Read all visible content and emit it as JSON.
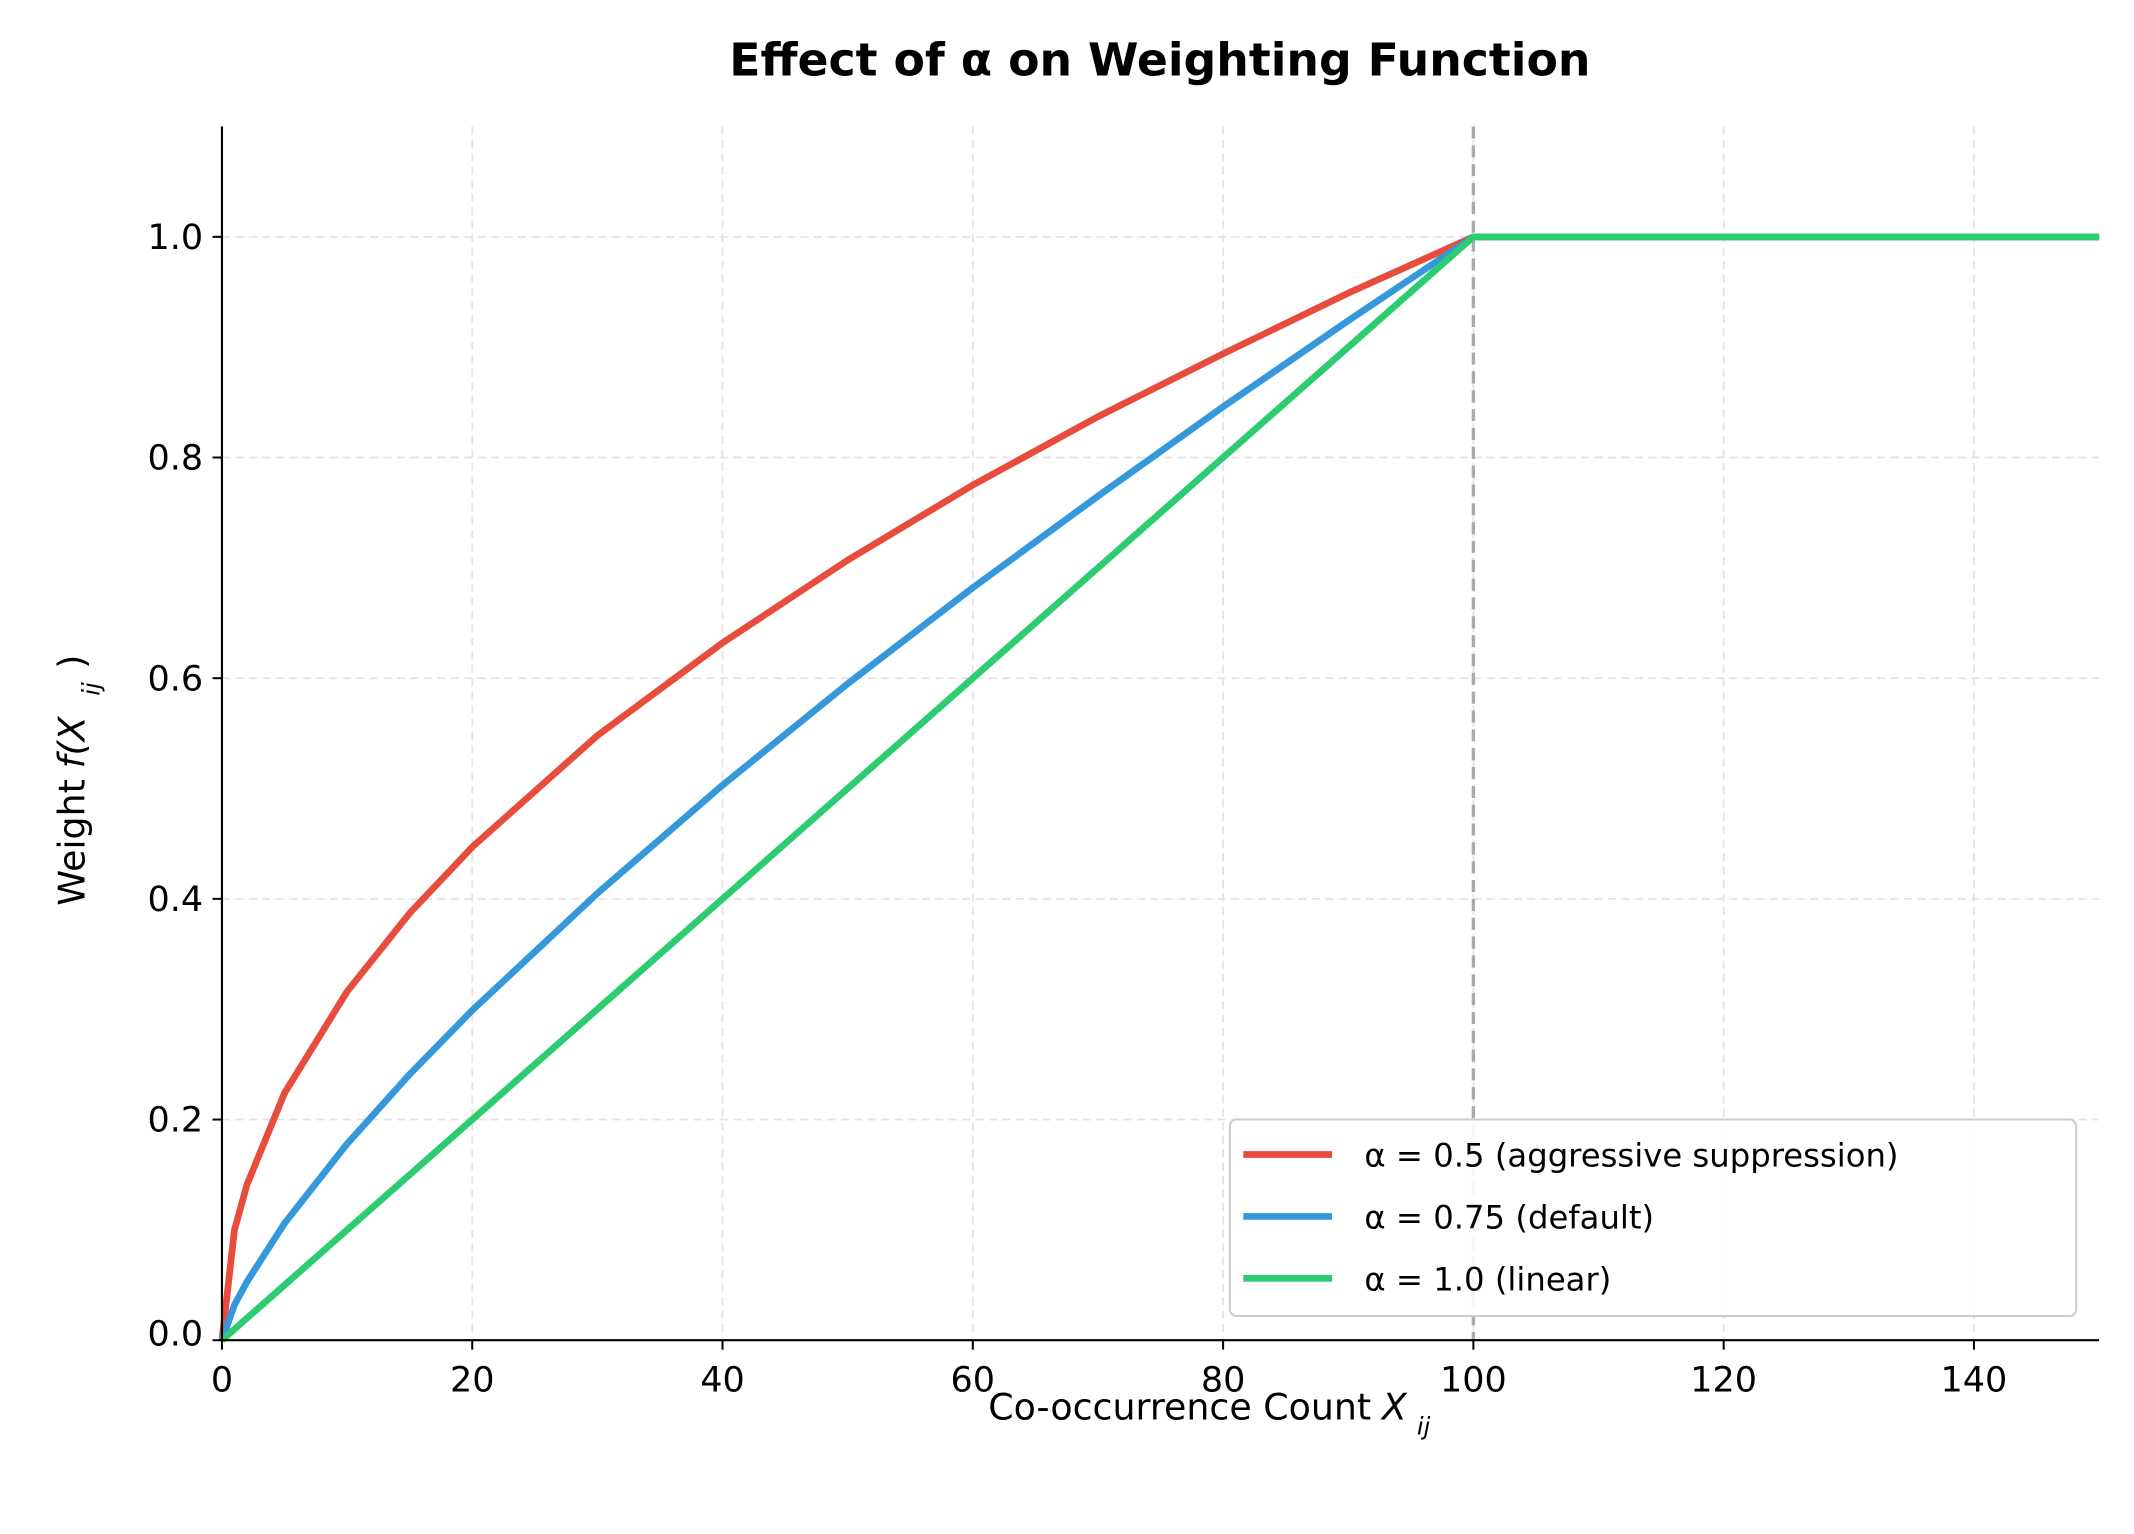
{
  "chart_data": {
    "type": "line",
    "title": "Effect of α on Weighting Function",
    "xlabel": "Co-occurrence Count X_ij",
    "xlabel_parts": {
      "text": "Co-occurrence Count ",
      "var": "X",
      "sub": "ij"
    },
    "ylabel": "Weight f(X_ij)",
    "ylabel_parts": {
      "text": "Weight ",
      "var": "f(X",
      "sub": "ij",
      "close": ")"
    },
    "xlim": [
      0,
      150
    ],
    "ylim": [
      0,
      1.1
    ],
    "xticks": [
      "0",
      "20",
      "40",
      "60",
      "80",
      "100",
      "120",
      "140"
    ],
    "yticks": [
      "0.0",
      "0.2",
      "0.4",
      "0.6",
      "0.8",
      "1.0"
    ],
    "grid": true,
    "legend_position": "bottom-right",
    "vertical_reference_line": {
      "x": 100,
      "style": "dashed",
      "color": "#aaaaaa"
    },
    "x": [
      0,
      1,
      2,
      5,
      10,
      15,
      20,
      30,
      40,
      50,
      60,
      70,
      80,
      90,
      100,
      110,
      120,
      130,
      140,
      150
    ],
    "series": [
      {
        "name": "α = 0.5 (aggressive suppression)",
        "color": "#e74c3c",
        "values": [
          0,
          0.1,
          0.141,
          0.224,
          0.316,
          0.387,
          0.447,
          0.548,
          0.632,
          0.707,
          0.775,
          0.837,
          0.894,
          0.949,
          1,
          1,
          1,
          1,
          1,
          1
        ]
      },
      {
        "name": "α = 0.75 (default)",
        "color": "#3498db",
        "values": [
          0,
          0.032,
          0.053,
          0.106,
          0.178,
          0.241,
          0.299,
          0.405,
          0.503,
          0.595,
          0.682,
          0.765,
          0.846,
          0.924,
          1,
          1,
          1,
          1,
          1,
          1
        ]
      },
      {
        "name": "α = 1.0 (linear)",
        "color": "#2ecc71",
        "values": [
          0,
          0.01,
          0.02,
          0.05,
          0.1,
          0.15,
          0.2,
          0.3,
          0.4,
          0.5,
          0.6,
          0.7,
          0.8,
          0.9,
          1,
          1,
          1,
          1,
          1,
          1
        ]
      }
    ]
  }
}
